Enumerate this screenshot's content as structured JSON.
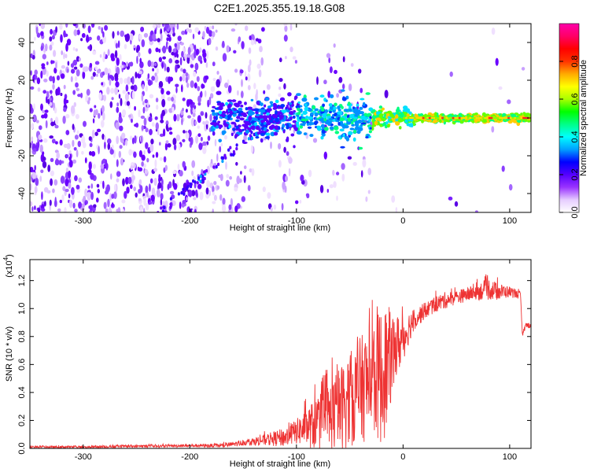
{
  "title": "C2E1.2025.355.19.18.G08",
  "chart_data": [
    {
      "type": "heatmap",
      "xlabel": "Height of straight line (km)",
      "ylabel": "Frequency (Hz)",
      "xlim": [
        -350,
        120
      ],
      "ylim": [
        -50,
        50
      ],
      "xticks": [
        -300,
        -200,
        -100,
        0,
        100
      ],
      "yticks": [
        -40,
        -20,
        0,
        20,
        40
      ],
      "colorbar": {
        "label": "Normalized spectral amplitude",
        "range": [
          0,
          1
        ],
        "ticks": [
          "0.0",
          "0.2",
          "0.4",
          "0.6",
          "0.8"
        ],
        "tick_values": [
          0,
          0.2,
          0.4,
          0.6,
          0.8
        ],
        "colors": [
          "#ffffff",
          "#e6ccff",
          "#9933ff",
          "#5500ff",
          "#0000ff",
          "#00a0ff",
          "#00ffff",
          "#00ff88",
          "#00ff00",
          "#aaff00",
          "#ffff00",
          "#ffaa00",
          "#ff3300",
          "#ff0000",
          "#ff0066",
          "#ff00aa"
        ]
      },
      "features": {
        "noise_region_x": [
          -350,
          -100
        ],
        "tone_center_hz": 0,
        "diagonal_track": {
          "x": [
            -230,
            -100
          ],
          "y": [
            -50,
            10
          ]
        }
      }
    },
    {
      "type": "line",
      "xlabel": "Height of straight line (km)",
      "ylabel": "SNR (10 * v/v)",
      "y_multiplier_label": "(x10",
      "y_multiplier_exp": "4",
      "y_multiplier_close": ")",
      "xlim": [
        -350,
        120
      ],
      "ylim": [
        0,
        1.35
      ],
      "xticks": [
        -300,
        -200,
        -100,
        0,
        100
      ],
      "yticks": [
        "0.0",
        "0.2",
        "0.4",
        "0.6",
        "0.8",
        "1.0",
        "1.2"
      ],
      "ytick_values": [
        0,
        0.2,
        0.4,
        0.6,
        0.8,
        1.0,
        1.2
      ],
      "color": "#ee3333",
      "series": [
        {
          "name": "SNR",
          "x": [
            -350,
            -300,
            -250,
            -200,
            -170,
            -150,
            -130,
            -110,
            -100,
            -90,
            -80,
            -70,
            -60,
            -50,
            -40,
            -30,
            -25,
            -20,
            -15,
            -10,
            -5,
            0,
            5,
            10,
            20,
            30,
            40,
            50,
            60,
            70,
            80,
            90,
            100,
            108,
            110,
            112,
            115,
            120
          ],
          "y": [
            0.01,
            0.01,
            0.015,
            0.02,
            0.02,
            0.04,
            0.06,
            0.08,
            0.12,
            0.15,
            0.18,
            0.22,
            0.28,
            0.35,
            0.42,
            0.48,
            0.55,
            0.5,
            0.58,
            0.68,
            0.74,
            0.78,
            0.86,
            0.92,
            0.98,
            1.03,
            1.06,
            1.08,
            1.1,
            1.12,
            1.14,
            1.12,
            1.12,
            1.1,
            1.1,
            0.8,
            0.88,
            0.88
          ],
          "noise": [
            0.008,
            0.008,
            0.01,
            0.01,
            0.015,
            0.02,
            0.04,
            0.07,
            0.09,
            0.14,
            0.2,
            0.26,
            0.3,
            0.34,
            0.38,
            0.42,
            0.48,
            0.5,
            0.45,
            0.3,
            0.22,
            0.16,
            0.12,
            0.08,
            0.06,
            0.06,
            0.06,
            0.05,
            0.05,
            0.06,
            0.08,
            0.06,
            0.04,
            0.03,
            0.02,
            0.02,
            0.02,
            0.02
          ]
        }
      ]
    }
  ]
}
